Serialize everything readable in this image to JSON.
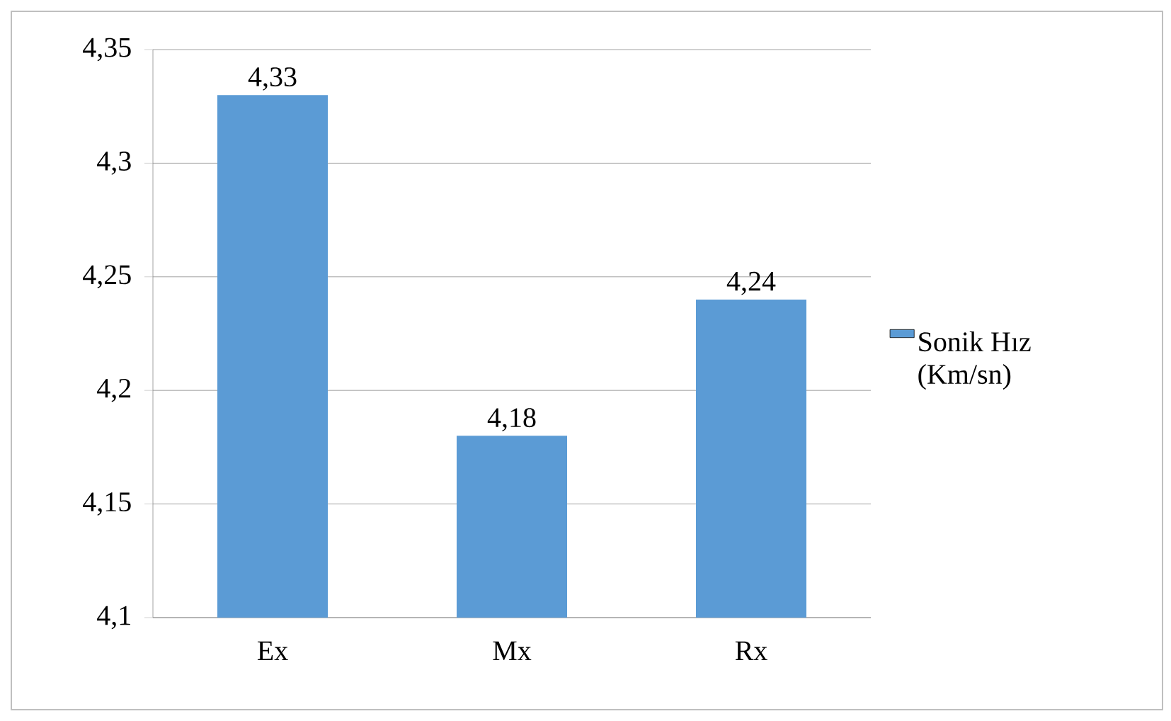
{
  "chart_data": {
    "type": "bar",
    "categories": [
      "Ex",
      "Mx",
      "Rx"
    ],
    "series": [
      {
        "name": "Sonik Hız (Km/sn)",
        "color": "#5b9bd5",
        "values": [
          4.33,
          4.18,
          4.24
        ],
        "value_labels": [
          "4,33",
          "4,18",
          "4,24"
        ]
      }
    ],
    "ylim": [
      4.1,
      4.35
    ],
    "yticks": [
      {
        "value": 4.1,
        "label": "4,1"
      },
      {
        "value": 4.15,
        "label": "4,15"
      },
      {
        "value": 4.2,
        "label": "4,2"
      },
      {
        "value": 4.25,
        "label": "4,25"
      },
      {
        "value": 4.3,
        "label": "4,3"
      },
      {
        "value": 4.35,
        "label": "4,35"
      }
    ],
    "grid": "y",
    "legend": "right"
  }
}
